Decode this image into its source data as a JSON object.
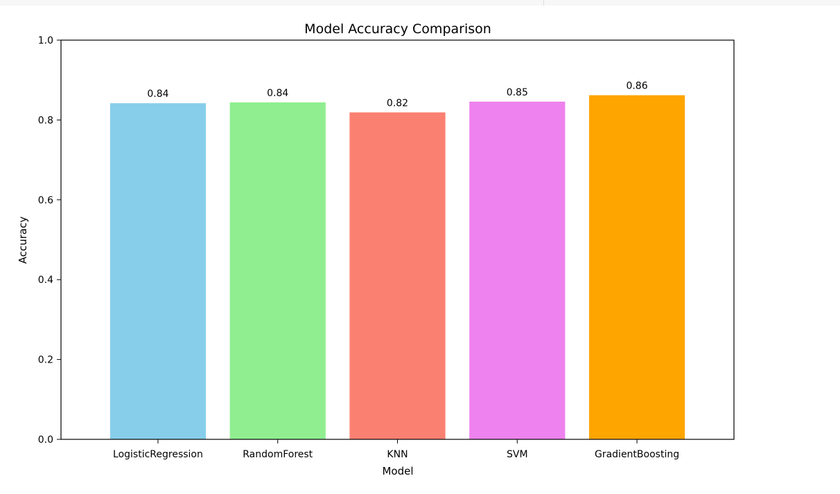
{
  "chart_data": {
    "type": "bar",
    "title": "Model Accuracy Comparison",
    "xlabel": "Model",
    "ylabel": "Accuracy",
    "categories": [
      "LogisticRegression",
      "RandomForest",
      "KNN",
      "SVM",
      "GradientBoosting"
    ],
    "values": [
      0.842,
      0.844,
      0.819,
      0.846,
      0.862
    ],
    "value_labels": [
      "0.84",
      "0.84",
      "0.82",
      "0.85",
      "0.86"
    ],
    "colors": [
      "#87ceeb",
      "#90ee90",
      "#fa8072",
      "#ee82ee",
      "#ffa500"
    ],
    "ylim": [
      0,
      1.0
    ],
    "yticks": [
      0.0,
      0.2,
      0.4,
      0.6,
      0.8,
      1.0
    ],
    "ytick_labels": [
      "0.0",
      "0.2",
      "0.4",
      "0.6",
      "0.8",
      "1.0"
    ],
    "grid": false,
    "legend": "none"
  }
}
